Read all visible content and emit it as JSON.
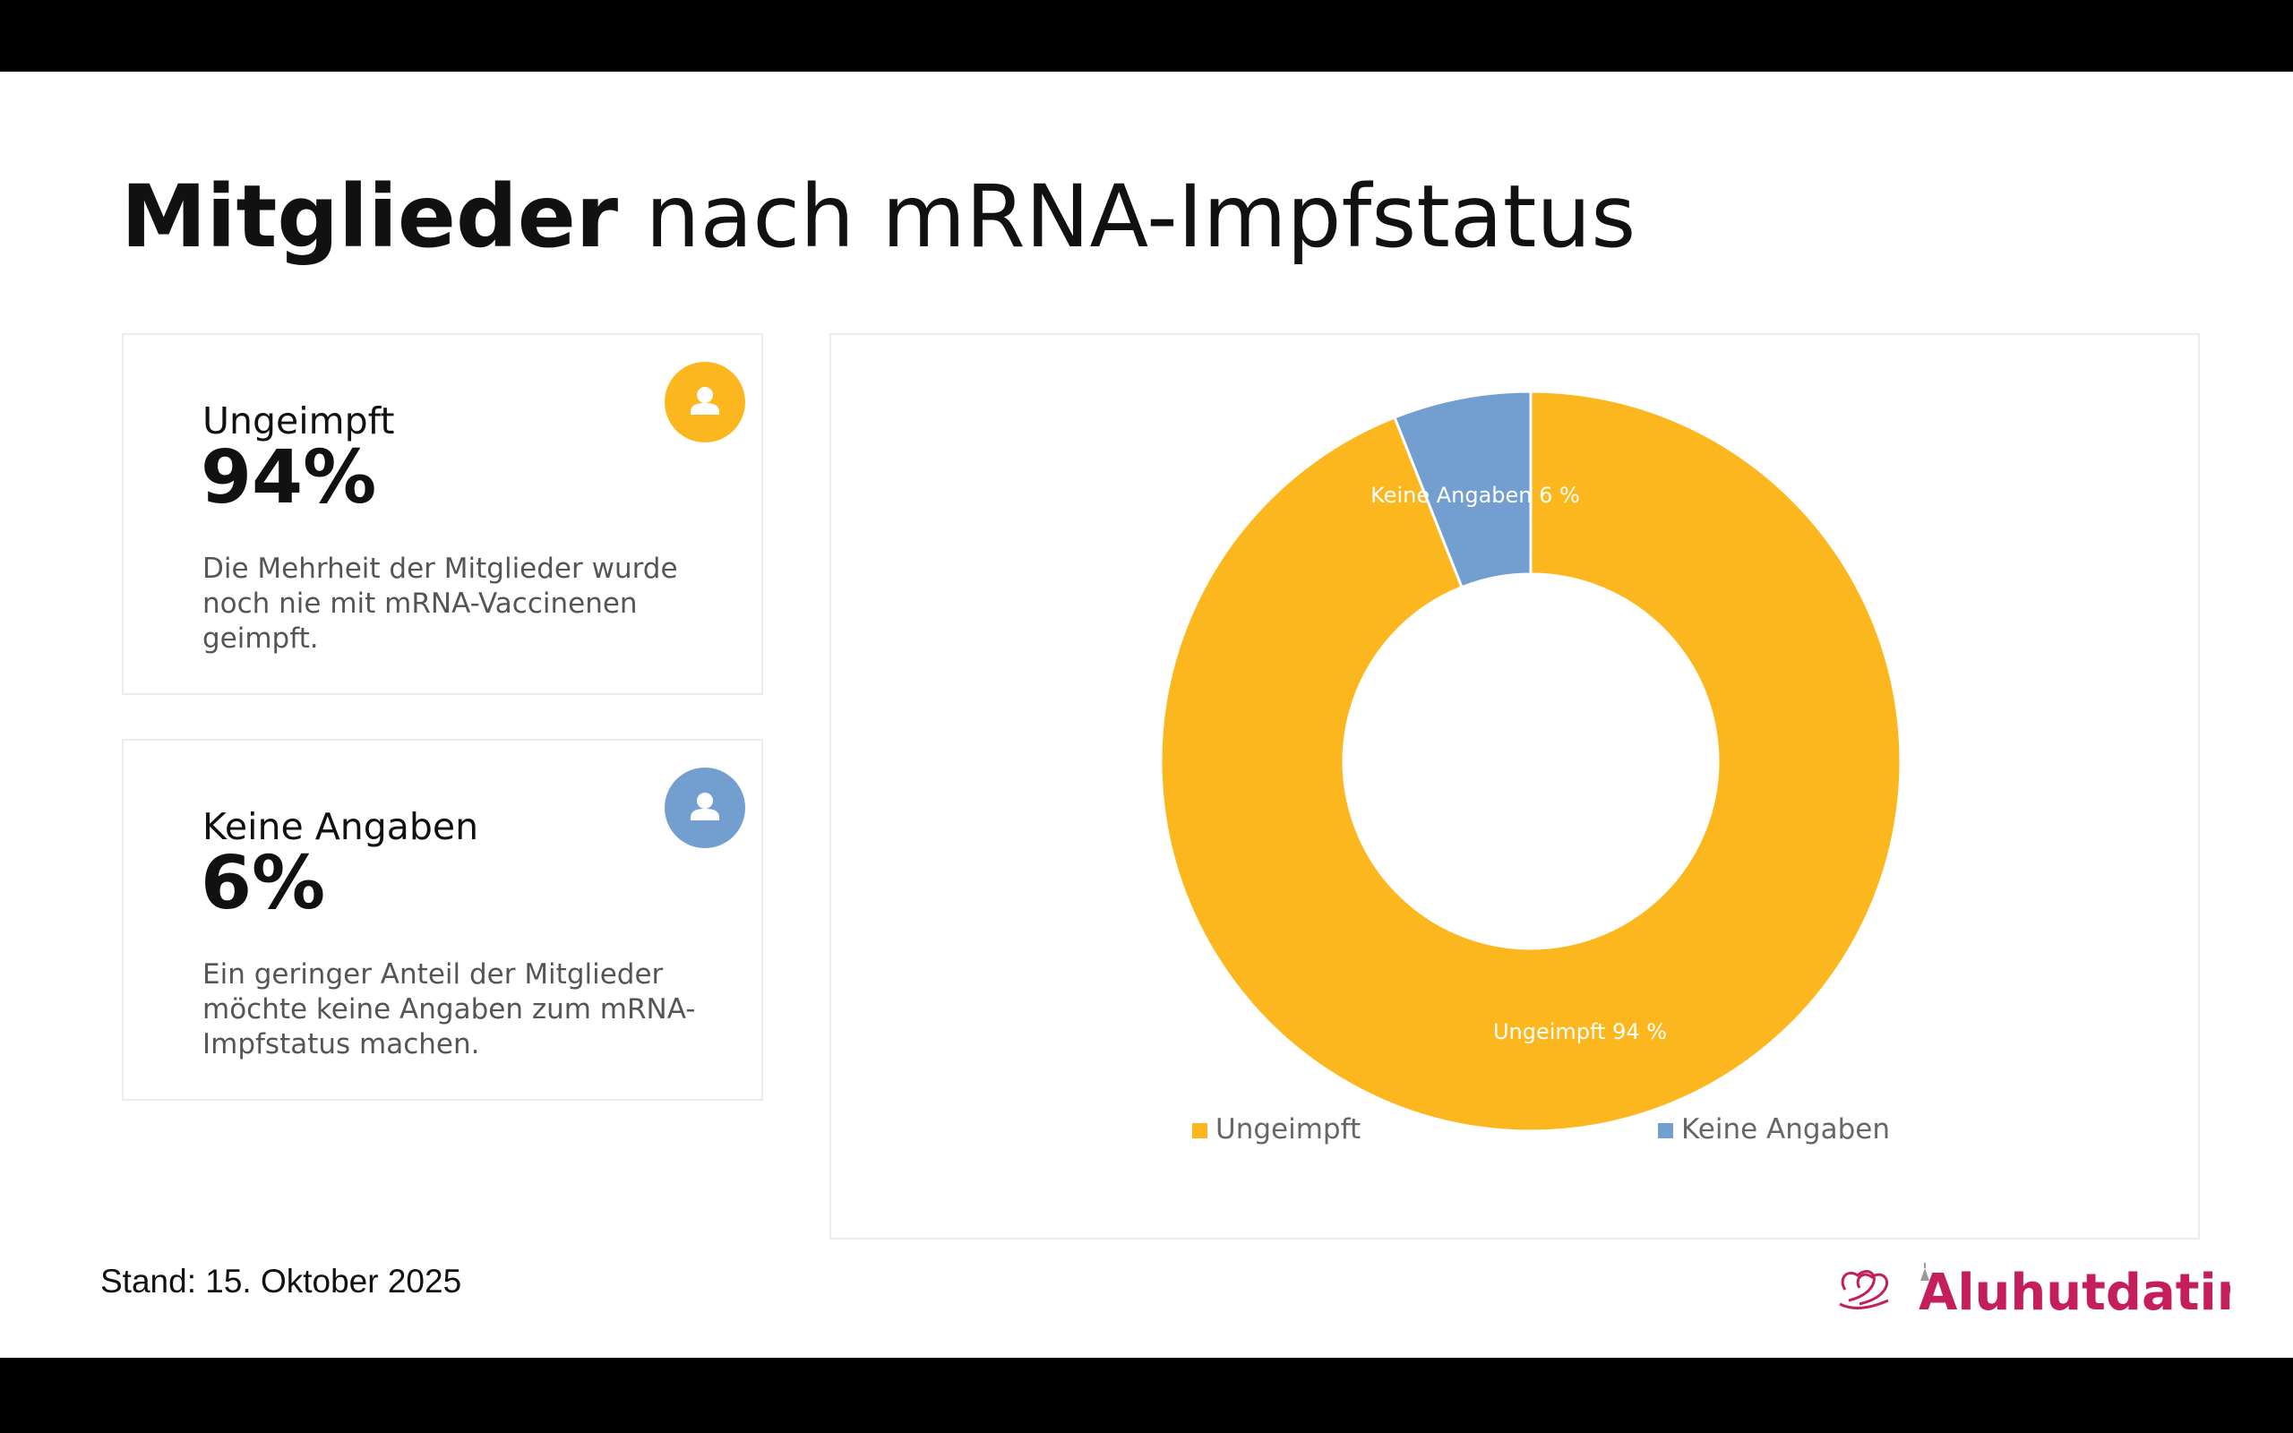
{
  "title": {
    "bold": "Mitglieder",
    "rest": "nach mRNA-Impfstatus"
  },
  "cards": [
    {
      "label": "Ungeimpft",
      "value": "94%",
      "description": "Die Mehrheit der Mitglieder wurde noch nie mit mRNA-Vaccinenen geimpft.",
      "icon": "user-icon",
      "color": "#FDB71E"
    },
    {
      "label": "Keine Angaben",
      "value": "6%",
      "description": "Ein geringer Anteil der Mitglieder möchte keine Angaben zum mRNA-Impfstatus machen.",
      "icon": "user-icon",
      "color": "#739FD0"
    }
  ],
  "chart_data": {
    "type": "pie",
    "categories": [
      "Ungeimpft",
      "Keine Angaben"
    ],
    "values": [
      94,
      6
    ],
    "colors": [
      "#FDB71E",
      "#739FD0"
    ],
    "data_labels": [
      "Ungeimpft 94 %",
      "Keine Angaben 6 %"
    ],
    "donut": true,
    "legend": "bottom"
  },
  "footer": {
    "stand": "Stand: 15. Oktober 2025"
  },
  "logo": {
    "text": "Aluhutdating",
    "color": "#C41E5C"
  }
}
